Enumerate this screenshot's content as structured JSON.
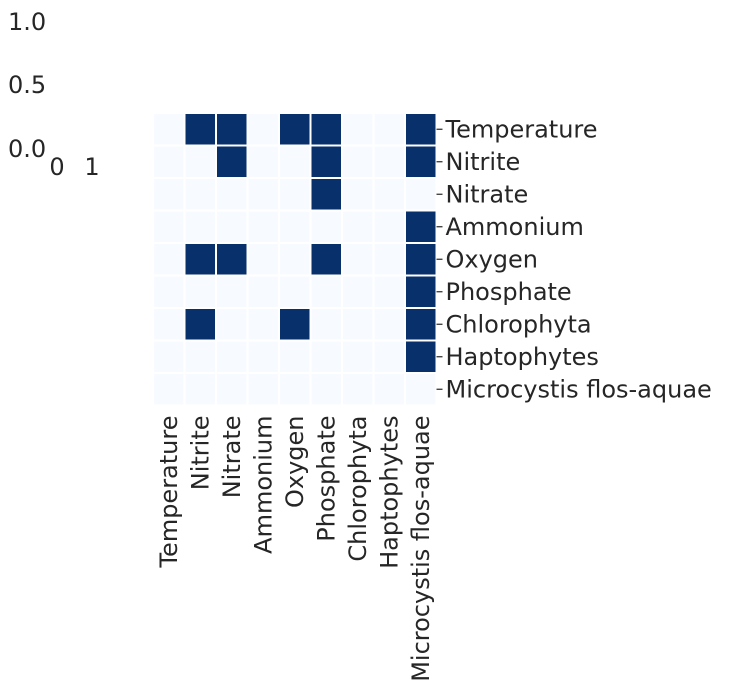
{
  "chart_data": {
    "type": "heatmap",
    "rows": [
      "Temperature",
      "Nitrite",
      "Nitrate",
      "Ammonium",
      "Oxygen",
      "Phosphate",
      "Chlorophyta",
      "Haptophytes",
      "Microcystis flos-aquae"
    ],
    "columns": [
      "Temperature",
      "Nitrite",
      "Nitrate",
      "Ammonium",
      "Oxygen",
      "Phosphate",
      "Chlorophyta",
      "Haptophytes",
      "Microcystis flos-aquae"
    ],
    "matrix": [
      [
        0,
        1,
        1,
        0,
        1,
        1,
        0,
        0,
        1
      ],
      [
        0,
        0,
        1,
        0,
        0,
        1,
        0,
        0,
        1
      ],
      [
        0,
        0,
        0,
        0,
        0,
        1,
        0,
        0,
        0
      ],
      [
        0,
        0,
        0,
        0,
        0,
        0,
        0,
        0,
        1
      ],
      [
        0,
        1,
        1,
        0,
        0,
        1,
        0,
        0,
        1
      ],
      [
        0,
        0,
        0,
        0,
        0,
        0,
        0,
        0,
        1
      ],
      [
        0,
        1,
        0,
        0,
        1,
        0,
        0,
        0,
        1
      ],
      [
        0,
        0,
        0,
        0,
        0,
        0,
        0,
        0,
        1
      ],
      [
        0,
        0,
        0,
        0,
        0,
        0,
        0,
        0,
        0
      ]
    ],
    "colors": {
      "low": "#f7fbff",
      "high": "#08306b",
      "cell_border": "#ffffff"
    },
    "colorbar": {
      "ticks": [
        "1.0",
        "0.5",
        "0.0"
      ],
      "xticks": [
        "0",
        "1"
      ]
    },
    "xlabel": "",
    "ylabel": "",
    "title": ""
  }
}
